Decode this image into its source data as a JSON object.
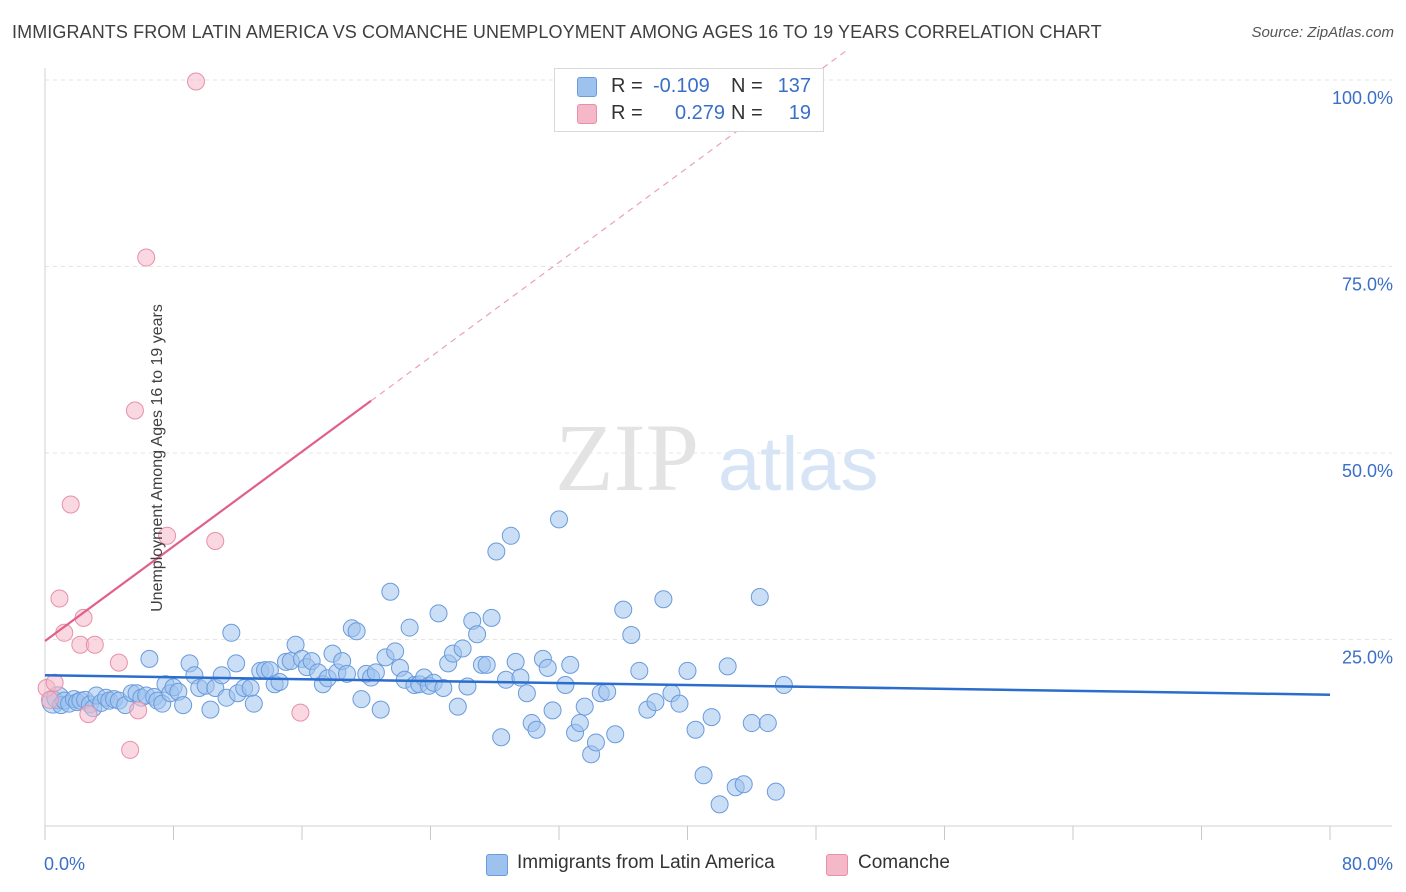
{
  "title": "IMMIGRANTS FROM LATIN AMERICA VS COMANCHE UNEMPLOYMENT AMONG AGES 16 TO 19 YEARS CORRELATION CHART",
  "source": "Source: ZipAtlas.com",
  "watermark": {
    "zip": "ZIP",
    "atlas": "atlas"
  },
  "legend": {
    "rows": [
      {
        "r_label": "R =",
        "r_value": "-0.109",
        "n_label": "N =",
        "n_value": "137",
        "color": "#9ec2ee"
      },
      {
        "r_label": "R =",
        "r_value": "0.279",
        "n_label": "N =",
        "n_value": "19",
        "color": "#f4b8c9"
      }
    ]
  },
  "bottom_legend": [
    {
      "label": "Immigrants from Latin America",
      "color": "#9ec2ee"
    },
    {
      "label": "Comanche",
      "color": "#f4b8c9"
    }
  ],
  "chart_data": {
    "type": "scatter",
    "title": "IMMIGRANTS FROM LATIN AMERICA VS COMANCHE UNEMPLOYMENT AMONG AGES 16 TO 19 YEARS CORRELATION CHART",
    "xlabel": "",
    "ylabel": "Unemployment Among Ages 16 to 19 years",
    "xlim": [
      0,
      80
    ],
    "ylim": [
      0,
      100
    ],
    "x_tick_labels": [
      {
        "value": 0,
        "label": "0.0%"
      },
      {
        "value": 80,
        "label": "80.0%"
      }
    ],
    "y_tick_labels": [
      {
        "value": 25,
        "label": "25.0%"
      },
      {
        "value": 50,
        "label": "50.0%"
      },
      {
        "value": 75,
        "label": "75.0%"
      },
      {
        "value": 100,
        "label": "100.0%"
      }
    ],
    "series": [
      {
        "name": "Immigrants from Latin America",
        "color": "#9ec2ee",
        "stroke": "#6a9bdc",
        "trendline": {
          "x0": 0,
          "y0": 20.2,
          "x1": 80,
          "y1": 17.6,
          "color": "#2a6dcc"
        },
        "points": [
          [
            0.5,
            16.6
          ],
          [
            0.8,
            17.2
          ],
          [
            1.0,
            16.2
          ],
          [
            1.2,
            16.8
          ],
          [
            1.5,
            16.4
          ],
          [
            1.8,
            17.0
          ],
          [
            2.0,
            16.6
          ],
          [
            2.2,
            16.8
          ],
          [
            2.5,
            16.9
          ],
          [
            2.8,
            16.3
          ],
          [
            3.0,
            15.8
          ],
          [
            3.2,
            17.5
          ],
          [
            3.5,
            16.5
          ],
          [
            3.8,
            17.2
          ],
          [
            4.0,
            16.8
          ],
          [
            4.3,
            17.0
          ],
          [
            4.6,
            16.8
          ],
          [
            5.0,
            16.2
          ],
          [
            5.4,
            17.8
          ],
          [
            5.7,
            17.8
          ],
          [
            6.0,
            17.2
          ],
          [
            6.3,
            17.5
          ],
          [
            6.5,
            22.4
          ],
          [
            6.8,
            17.3
          ],
          [
            7.0,
            16.8
          ],
          [
            7.3,
            16.4
          ],
          [
            7.5,
            19.0
          ],
          [
            7.8,
            17.8
          ],
          [
            8.0,
            18.6
          ],
          [
            8.3,
            18.0
          ],
          [
            8.6,
            16.2
          ],
          [
            9.0,
            21.8
          ],
          [
            9.3,
            20.2
          ],
          [
            9.6,
            18.5
          ],
          [
            10.0,
            18.8
          ],
          [
            10.3,
            15.6
          ],
          [
            10.6,
            18.5
          ],
          [
            11.0,
            20.2
          ],
          [
            11.3,
            17.2
          ],
          [
            11.6,
            25.9
          ],
          [
            11.9,
            21.8
          ],
          [
            12.0,
            17.8
          ],
          [
            12.4,
            18.5
          ],
          [
            12.8,
            18.5
          ],
          [
            13.0,
            16.4
          ],
          [
            13.4,
            20.8
          ],
          [
            13.7,
            20.9
          ],
          [
            14.0,
            20.9
          ],
          [
            14.3,
            19.0
          ],
          [
            14.6,
            19.3
          ],
          [
            15.0,
            22.0
          ],
          [
            15.3,
            22.1
          ],
          [
            15.6,
            24.3
          ],
          [
            16.0,
            22.4
          ],
          [
            16.3,
            21.3
          ],
          [
            16.6,
            22.1
          ],
          [
            17.0,
            20.6
          ],
          [
            17.3,
            19.0
          ],
          [
            17.6,
            19.8
          ],
          [
            17.9,
            23.1
          ],
          [
            18.2,
            20.6
          ],
          [
            18.5,
            22.1
          ],
          [
            18.8,
            20.4
          ],
          [
            19.1,
            26.5
          ],
          [
            19.4,
            26.1
          ],
          [
            19.7,
            17.0
          ],
          [
            20.0,
            20.4
          ],
          [
            20.3,
            19.9
          ],
          [
            20.6,
            20.6
          ],
          [
            20.9,
            15.6
          ],
          [
            21.2,
            22.6
          ],
          [
            21.5,
            31.4
          ],
          [
            21.8,
            23.4
          ],
          [
            22.1,
            21.2
          ],
          [
            22.4,
            19.6
          ],
          [
            22.7,
            26.6
          ],
          [
            23.0,
            18.9
          ],
          [
            23.3,
            19.0
          ],
          [
            23.6,
            19.9
          ],
          [
            23.9,
            18.8
          ],
          [
            24.2,
            19.2
          ],
          [
            24.5,
            28.5
          ],
          [
            24.8,
            18.5
          ],
          [
            25.1,
            21.8
          ],
          [
            25.4,
            23.1
          ],
          [
            25.7,
            16.0
          ],
          [
            26.0,
            23.8
          ],
          [
            26.3,
            18.7
          ],
          [
            26.6,
            27.5
          ],
          [
            26.9,
            25.7
          ],
          [
            27.2,
            21.6
          ],
          [
            27.5,
            21.6
          ],
          [
            27.8,
            27.9
          ],
          [
            28.1,
            36.8
          ],
          [
            28.4,
            11.9
          ],
          [
            28.7,
            19.6
          ],
          [
            29.0,
            38.9
          ],
          [
            29.3,
            22.0
          ],
          [
            29.6,
            19.9
          ],
          [
            30.0,
            17.8
          ],
          [
            30.3,
            13.8
          ],
          [
            30.6,
            12.9
          ],
          [
            31.0,
            22.4
          ],
          [
            31.3,
            21.2
          ],
          [
            31.6,
            15.5
          ],
          [
            32.0,
            41.1
          ],
          [
            32.4,
            18.9
          ],
          [
            32.7,
            21.6
          ],
          [
            33.0,
            12.5
          ],
          [
            33.3,
            13.8
          ],
          [
            33.6,
            16.0
          ],
          [
            34.0,
            9.6
          ],
          [
            34.3,
            11.2
          ],
          [
            34.6,
            17.8
          ],
          [
            35.0,
            18.0
          ],
          [
            35.5,
            12.3
          ],
          [
            36.0,
            29.0
          ],
          [
            36.5,
            25.6
          ],
          [
            37.0,
            20.8
          ],
          [
            37.5,
            15.6
          ],
          [
            38.0,
            16.6
          ],
          [
            38.5,
            30.4
          ],
          [
            39.0,
            17.8
          ],
          [
            39.5,
            16.4
          ],
          [
            40.0,
            20.8
          ],
          [
            40.5,
            12.9
          ],
          [
            41.0,
            6.8
          ],
          [
            41.5,
            14.6
          ],
          [
            42.0,
            2.9
          ],
          [
            42.5,
            21.4
          ],
          [
            43.0,
            5.2
          ],
          [
            43.5,
            5.6
          ],
          [
            44.0,
            13.8
          ],
          [
            44.5,
            30.7
          ],
          [
            45.0,
            13.8
          ],
          [
            45.5,
            4.6
          ],
          [
            46.0,
            18.9
          ]
        ]
      },
      {
        "name": "Comanche",
        "color": "#f4b8c9",
        "stroke": "#e890aa",
        "trendline": {
          "x0": 0,
          "y0": 24.8,
          "x1": 20.3,
          "y1": 57.0,
          "dash_to_x": 50,
          "color": "#e0608a"
        },
        "points": [
          [
            0.1,
            18.5
          ],
          [
            0.3,
            16.9
          ],
          [
            0.6,
            19.2
          ],
          [
            0.9,
            30.5
          ],
          [
            1.2,
            25.9
          ],
          [
            1.6,
            43.1
          ],
          [
            2.2,
            24.3
          ],
          [
            2.4,
            27.9
          ],
          [
            2.7,
            15.0
          ],
          [
            3.1,
            24.3
          ],
          [
            4.6,
            21.9
          ],
          [
            5.3,
            10.2
          ],
          [
            5.6,
            55.7
          ],
          [
            5.8,
            15.5
          ],
          [
            6.3,
            76.2
          ],
          [
            7.6,
            38.9
          ],
          [
            9.4,
            99.8
          ],
          [
            10.6,
            38.2
          ],
          [
            15.9,
            15.2
          ]
        ]
      }
    ]
  }
}
